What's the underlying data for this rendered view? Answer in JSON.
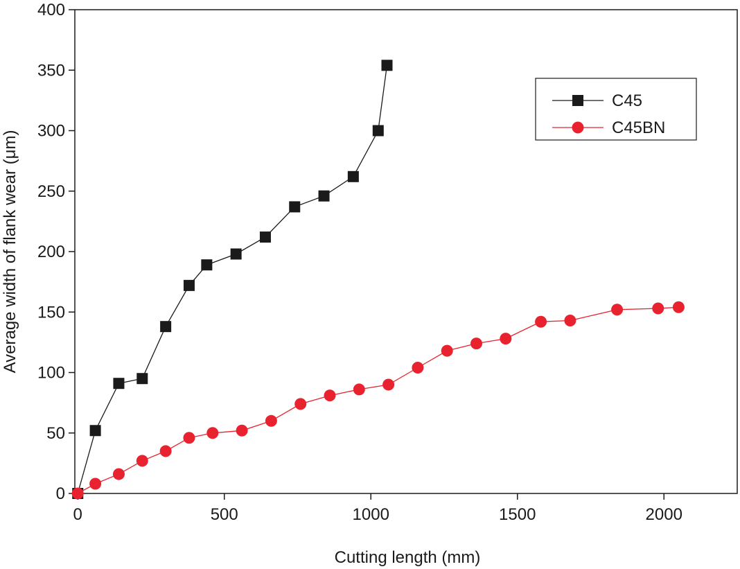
{
  "chart_data": {
    "type": "line",
    "title": "",
    "xlabel": "Cutting length (mm)",
    "ylabel": "Average width of flank wear (μm)",
    "xlim": [
      -10,
      2250
    ],
    "ylim": [
      0,
      400
    ],
    "x_ticks": [
      0,
      500,
      1000,
      1500,
      2000
    ],
    "y_ticks": [
      0,
      50,
      100,
      150,
      200,
      250,
      300,
      350,
      400
    ],
    "x_tick_labels": [
      "0",
      "500",
      "1000",
      "1500",
      "2000"
    ],
    "y_tick_labels": [
      "0",
      "50",
      "100",
      "150",
      "200",
      "250",
      "300",
      "350",
      "400"
    ],
    "grid": false,
    "legend_position": "top-right",
    "series": [
      {
        "name": "C45",
        "color": "#1a1a1a",
        "marker": "square",
        "x": [
          0,
          60,
          140,
          220,
          300,
          380,
          440,
          540,
          640,
          740,
          840,
          940,
          1025,
          1055
        ],
        "y": [
          0,
          52,
          91,
          95,
          138,
          172,
          189,
          198,
          212,
          237,
          246,
          262,
          300,
          354
        ]
      },
      {
        "name": "C45BN",
        "color": "#e8222e",
        "marker": "circle",
        "x": [
          0,
          60,
          140,
          220,
          300,
          380,
          460,
          560,
          660,
          760,
          860,
          960,
          1060,
          1160,
          1260,
          1360,
          1460,
          1580,
          1680,
          1840,
          1980,
          2050
        ],
        "y": [
          0,
          8,
          16,
          27,
          35,
          46,
          50,
          52,
          60,
          74,
          81,
          86,
          90,
          104,
          118,
          124,
          128,
          142,
          143,
          152,
          153,
          154
        ]
      }
    ]
  }
}
